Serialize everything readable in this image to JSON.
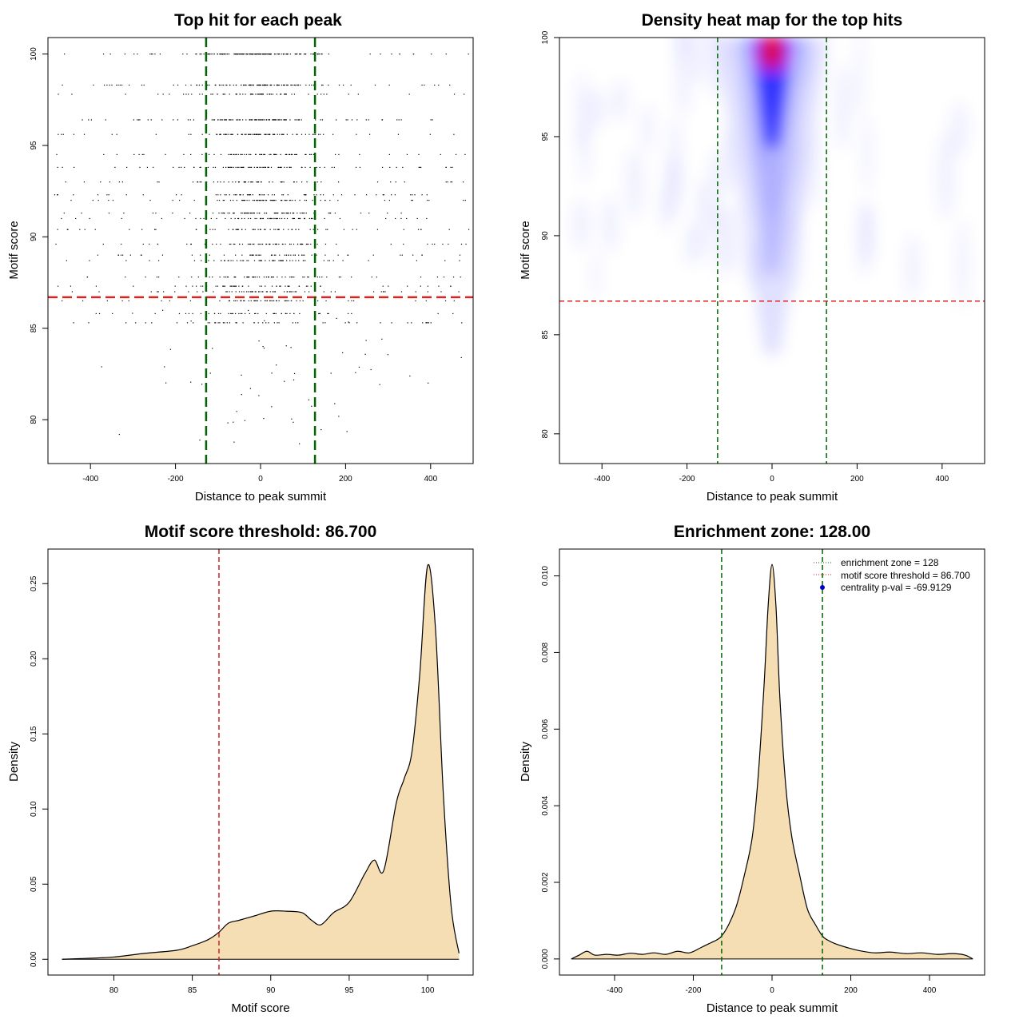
{
  "chart_data": [
    {
      "type": "scatter",
      "title": "Top hit for each peak",
      "xlabel": "Distance to peak summit",
      "ylabel": "Motif score",
      "xlim": [
        -500,
        500
      ],
      "ylim": [
        77.6,
        100.9
      ],
      "xticks": [
        -400,
        -200,
        0,
        200,
        400
      ],
      "yticks": [
        80,
        85,
        90,
        95,
        100
      ],
      "score_rows": [
        100,
        98.3,
        97.8,
        96.4,
        95.6,
        94.5,
        93.8,
        93,
        92.3,
        92,
        91.3,
        91,
        90.4,
        89.6,
        89,
        88.7,
        87.8,
        87.3,
        87,
        86.5,
        85.8,
        85.3
      ],
      "row_weights": [
        1.0,
        0.7,
        0.35,
        0.6,
        0.5,
        0.4,
        0.45,
        0.3,
        0.3,
        0.35,
        0.4,
        0.3,
        0.3,
        0.35,
        0.25,
        0.25,
        0.3,
        0.25,
        0.3,
        0.25,
        0.2,
        0.2
      ],
      "vlines": [
        -128,
        128
      ],
      "hline": 86.7,
      "colors": {
        "points": "#000000",
        "vlines": "#006400",
        "hline": "#dd2222"
      }
    },
    {
      "type": "heatmap",
      "title": "Density heat map for the top hits",
      "xlabel": "Distance to peak summit",
      "ylabel": "Motif score",
      "xlim": [
        -500,
        500
      ],
      "ylim": [
        78.5,
        100
      ],
      "xticks": [
        -400,
        -200,
        0,
        200,
        400
      ],
      "yticks": [
        80,
        85,
        90,
        95,
        100
      ],
      "vlines": [
        -128,
        128
      ],
      "hline": 86.7,
      "colors": {
        "low": "#ffffff",
        "mid": "#0000ff",
        "high": "#ff0000",
        "vlines": "#006400",
        "hline": "#dd2222"
      }
    },
    {
      "type": "area",
      "title": "Motif score threshold: 86.700",
      "xlabel": "Motif score",
      "ylabel": "Density",
      "xlim": [
        75.8,
        102.9
      ],
      "ylim": [
        -0.0105,
        0.273
      ],
      "xticks": [
        80,
        85,
        90,
        95,
        100
      ],
      "yticks": [
        0.0,
        0.05,
        0.1,
        0.15,
        0.2,
        0.25
      ],
      "ytick_labels": [
        "0.00",
        "0.05",
        "0.10",
        "0.15",
        "0.20",
        "0.25"
      ],
      "x": [
        76.7,
        78,
        80,
        82,
        84,
        85,
        86,
        86.7,
        87.3,
        88,
        89,
        90,
        91,
        92,
        92.6,
        93.2,
        94,
        95,
        96,
        96.6,
        97.2,
        98,
        98.5,
        99,
        99.5,
        100,
        100.5,
        101,
        101.5,
        102
      ],
      "values": [
        0,
        0.0005,
        0.0015,
        0.004,
        0.006,
        0.009,
        0.013,
        0.018,
        0.024,
        0.026,
        0.029,
        0.032,
        0.032,
        0.031,
        0.026,
        0.023,
        0.031,
        0.038,
        0.057,
        0.066,
        0.059,
        0.104,
        0.12,
        0.138,
        0.19,
        0.262,
        0.22,
        0.11,
        0.035,
        0.004
      ],
      "vline": 86.7,
      "colors": {
        "fill": "#f5deb3",
        "line": "#000000",
        "vline": "#cc2222"
      }
    },
    {
      "type": "area",
      "title": "Enrichment zone: 128.00",
      "xlabel": "Distance to peak summit",
      "ylabel": "Density",
      "xlim": [
        -540,
        540
      ],
      "ylim": [
        -0.00042,
        0.0107
      ],
      "xticks": [
        -400,
        -200,
        0,
        200,
        400
      ],
      "yticks": [
        0.0,
        0.002,
        0.004,
        0.006,
        0.008,
        0.01
      ],
      "ytick_labels": [
        "0.000",
        "0.002",
        "0.004",
        "0.006",
        "0.008",
        "0.010"
      ],
      "x": [
        -510,
        -490,
        -470,
        -450,
        -420,
        -390,
        -360,
        -330,
        -300,
        -270,
        -240,
        -210,
        -180,
        -160,
        -140,
        -128,
        -110,
        -90,
        -70,
        -50,
        -35,
        -20,
        -10,
        0,
        10,
        20,
        35,
        50,
        70,
        90,
        110,
        128,
        140,
        160,
        190,
        220,
        260,
        300,
        340,
        380,
        420,
        460,
        490,
        510
      ],
      "values": [
        0,
        0.0001,
        0.0002,
        0.0001,
        0.00012,
        0.0001,
        0.00015,
        0.00012,
        0.00016,
        0.00012,
        0.0002,
        0.00016,
        0.0003,
        0.0004,
        0.0005,
        0.0006,
        0.0009,
        0.0014,
        0.0022,
        0.0032,
        0.0048,
        0.0072,
        0.0092,
        0.0103,
        0.0092,
        0.0068,
        0.0045,
        0.0032,
        0.0022,
        0.0013,
        0.0009,
        0.0006,
        0.0005,
        0.0004,
        0.0003,
        0.00022,
        0.00016,
        0.00018,
        0.00014,
        0.00016,
        0.00012,
        0.00014,
        0.0001,
        0
      ],
      "vlines": [
        -128,
        128
      ],
      "legend_position": "top-right",
      "legend": [
        {
          "label": "enrichment zone = 128",
          "kind": "dotted-line",
          "color": "#006400"
        },
        {
          "label": "motif score threshold = 86.700",
          "kind": "dotted-line",
          "color": "#dd2222"
        },
        {
          "label": "centrality p-val = -69.9129",
          "kind": "point",
          "color": "#0000cc"
        }
      ],
      "colors": {
        "fill": "#f5deb3",
        "line": "#000000",
        "vlines": "#006400"
      }
    }
  ]
}
